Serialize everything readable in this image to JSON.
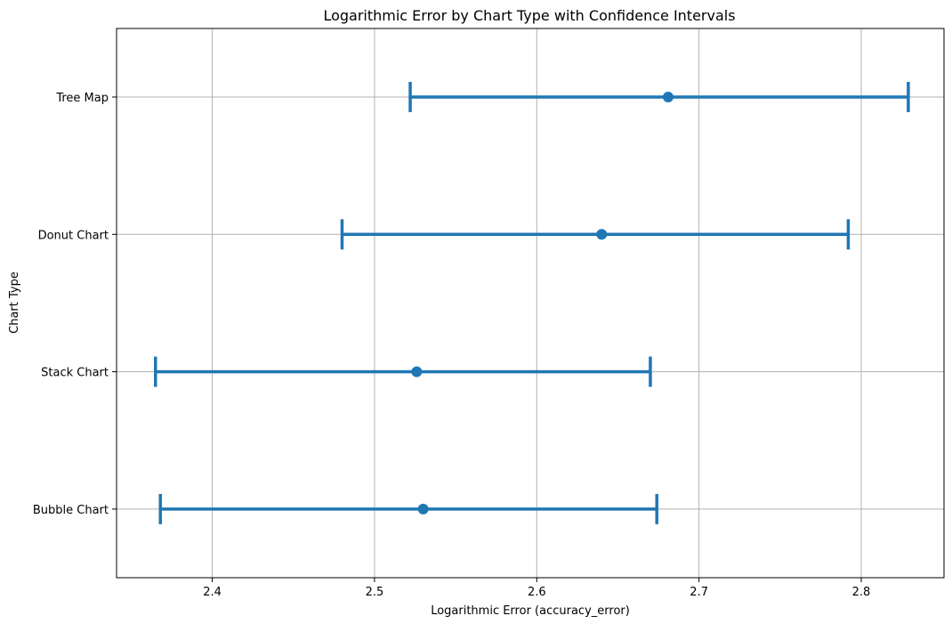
{
  "chart_data": {
    "type": "pointplot",
    "orientation": "horizontal",
    "title": "Logarithmic Error by Chart Type with Confidence Intervals",
    "xlabel": "Logarithmic Error (accuracy_error)",
    "ylabel": "Chart Type",
    "xlim": [
      2.341,
      2.851
    ],
    "x_ticks": [
      2.4,
      2.5,
      2.6,
      2.7,
      2.8
    ],
    "x_tick_labels": [
      "2.4",
      "2.5",
      "2.6",
      "2.7",
      "2.8"
    ],
    "grid": true,
    "color": "#1f77b4",
    "categories": [
      "Tree Map",
      "Donut Chart",
      "Stack Chart",
      "Bubble Chart"
    ],
    "points": [
      {
        "category": "Tree Map",
        "value": 2.681,
        "ci_low": 2.522,
        "ci_high": 2.829
      },
      {
        "category": "Donut Chart",
        "value": 2.64,
        "ci_low": 2.48,
        "ci_high": 2.792
      },
      {
        "category": "Stack Chart",
        "value": 2.526,
        "ci_low": 2.365,
        "ci_high": 2.67
      },
      {
        "category": "Bubble Chart",
        "value": 2.53,
        "ci_low": 2.368,
        "ci_high": 2.674
      }
    ]
  }
}
